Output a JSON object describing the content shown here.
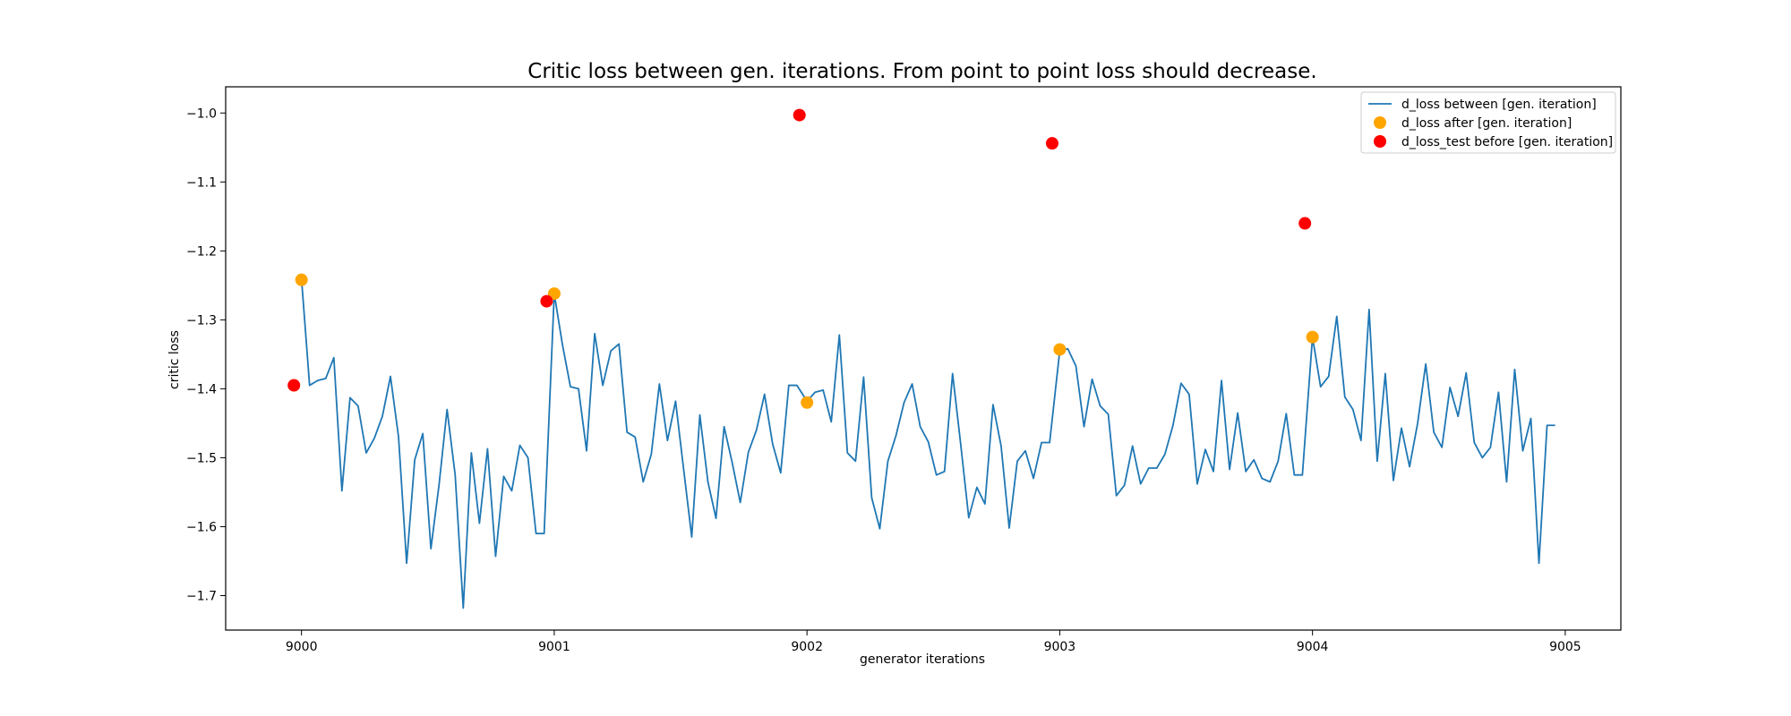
{
  "chart_data": {
    "type": "line",
    "title": "Critic loss between gen. iterations. From point to point loss should decrease.",
    "xlabel": "generator iterations",
    "ylabel": "critic loss",
    "xlim": [
      8999.7,
      9005.22
    ],
    "ylim": [
      -1.75,
      -0.962
    ],
    "xticks": [
      9000,
      9001,
      9002,
      9003,
      9004,
      9005
    ],
    "xtick_labels": [
      "9000",
      "9001",
      "9002",
      "9003",
      "9004",
      "9005"
    ],
    "yticks": [
      -1.7,
      -1.6,
      -1.5,
      -1.4,
      -1.3,
      -1.2,
      -1.1,
      -1.0
    ],
    "ytick_labels": [
      "−1.7",
      "−1.6",
      "−1.5",
      "−1.4",
      "−1.3",
      "−1.2",
      "−1.1",
      "−1.0"
    ],
    "grid": false,
    "legend_position": "top-right",
    "colors": {
      "line": "#1f77b4",
      "after": "#ffa500",
      "before": "#ff0000"
    },
    "series": [
      {
        "name": "d_loss between [gen. iteration]",
        "kind": "line",
        "x": [
          9000.0,
          9000.032,
          9000.064,
          9000.096,
          9000.128,
          9000.16,
          9000.192,
          9000.224,
          9000.256,
          9000.288,
          9000.32,
          9000.352,
          9000.384,
          9000.416,
          9000.448,
          9000.48,
          9000.512,
          9000.544,
          9000.576,
          9000.608,
          9000.64,
          9000.672,
          9000.704,
          9000.736,
          9000.768,
          9000.8,
          9000.832,
          9000.864,
          9000.896,
          9000.928,
          9000.96,
          9001.0,
          9001.032,
          9001.064,
          9001.096,
          9001.128,
          9001.16,
          9001.192,
          9001.224,
          9001.256,
          9001.288,
          9001.32,
          9001.352,
          9001.384,
          9001.416,
          9001.448,
          9001.48,
          9001.512,
          9001.544,
          9001.576,
          9001.608,
          9001.64,
          9001.672,
          9001.704,
          9001.736,
          9001.768,
          9001.8,
          9001.832,
          9001.864,
          9001.896,
          9001.928,
          9001.96,
          9002.0,
          9002.032,
          9002.064,
          9002.096,
          9002.128,
          9002.16,
          9002.192,
          9002.224,
          9002.256,
          9002.288,
          9002.32,
          9002.352,
          9002.384,
          9002.416,
          9002.448,
          9002.48,
          9002.512,
          9002.544,
          9002.576,
          9002.608,
          9002.64,
          9002.672,
          9002.704,
          9002.736,
          9002.768,
          9002.8,
          9002.832,
          9002.864,
          9002.896,
          9002.928,
          9002.96,
          9003.0,
          9003.032,
          9003.064,
          9003.096,
          9003.128,
          9003.16,
          9003.192,
          9003.224,
          9003.256,
          9003.288,
          9003.32,
          9003.352,
          9003.384,
          9003.416,
          9003.448,
          9003.48,
          9003.512,
          9003.544,
          9003.576,
          9003.608,
          9003.64,
          9003.672,
          9003.704,
          9003.736,
          9003.768,
          9003.8,
          9003.832,
          9003.864,
          9003.896,
          9003.928,
          9003.96,
          9004.0,
          9004.032,
          9004.064,
          9004.096,
          9004.128,
          9004.16,
          9004.192,
          9004.224,
          9004.256,
          9004.288,
          9004.32,
          9004.352,
          9004.384,
          9004.416,
          9004.448,
          9004.48,
          9004.512,
          9004.544,
          9004.576,
          9004.608,
          9004.64,
          9004.672,
          9004.704,
          9004.736,
          9004.768,
          9004.8,
          9004.832,
          9004.864,
          9004.896,
          9004.928,
          9004.96
        ],
        "y": [
          -1.24,
          -1.395,
          -1.388,
          -1.385,
          -1.355,
          -1.548,
          -1.413,
          -1.425,
          -1.493,
          -1.472,
          -1.44,
          -1.382,
          -1.47,
          -1.653,
          -1.503,
          -1.465,
          -1.632,
          -1.54,
          -1.43,
          -1.525,
          -1.718,
          -1.493,
          -1.595,
          -1.487,
          -1.643,
          -1.527,
          -1.548,
          -1.482,
          -1.5,
          -1.61,
          -1.61,
          -1.262,
          -1.335,
          -1.397,
          -1.4,
          -1.49,
          -1.32,
          -1.395,
          -1.345,
          -1.335,
          -1.463,
          -1.47,
          -1.535,
          -1.495,
          -1.393,
          -1.475,
          -1.418,
          -1.517,
          -1.615,
          -1.438,
          -1.535,
          -1.588,
          -1.455,
          -1.507,
          -1.565,
          -1.492,
          -1.46,
          -1.408,
          -1.48,
          -1.522,
          -1.395,
          -1.395,
          -1.418,
          -1.405,
          -1.402,
          -1.448,
          -1.322,
          -1.493,
          -1.505,
          -1.383,
          -1.558,
          -1.603,
          -1.505,
          -1.468,
          -1.42,
          -1.393,
          -1.455,
          -1.477,
          -1.525,
          -1.52,
          -1.378,
          -1.48,
          -1.587,
          -1.543,
          -1.567,
          -1.423,
          -1.483,
          -1.602,
          -1.505,
          -1.49,
          -1.53,
          -1.478,
          -1.478,
          -1.345,
          -1.342,
          -1.367,
          -1.455,
          -1.386,
          -1.425,
          -1.437,
          -1.555,
          -1.54,
          -1.483,
          -1.538,
          -1.515,
          -1.515,
          -1.495,
          -1.453,
          -1.392,
          -1.408,
          -1.538,
          -1.488,
          -1.52,
          -1.388,
          -1.517,
          -1.435,
          -1.52,
          -1.503,
          -1.53,
          -1.535,
          -1.505,
          -1.436,
          -1.525,
          -1.525,
          -1.325,
          -1.397,
          -1.382,
          -1.295,
          -1.412,
          -1.43,
          -1.475,
          -1.285,
          -1.505,
          -1.378,
          -1.533,
          -1.457,
          -1.513,
          -1.45,
          -1.364,
          -1.463,
          -1.485,
          -1.398,
          -1.44,
          -1.377,
          -1.478,
          -1.5,
          -1.485,
          -1.405,
          -1.535,
          -1.372,
          -1.49,
          -1.443,
          -1.653,
          -1.453,
          -1.453
        ]
      },
      {
        "name": "d_loss after [gen. iteration]",
        "kind": "scatter",
        "x": [
          9000,
          9001,
          9002,
          9003,
          9004
        ],
        "y": [
          -1.242,
          -1.262,
          -1.42,
          -1.343,
          -1.325
        ]
      },
      {
        "name": "d_loss_test before [gen. iteration]",
        "kind": "scatter",
        "x": [
          8999.97,
          9000.97,
          9001.97,
          9002.97,
          9003.97
        ],
        "y": [
          -1.395,
          -1.273,
          -1.003,
          -1.044,
          -1.16
        ]
      }
    ]
  }
}
